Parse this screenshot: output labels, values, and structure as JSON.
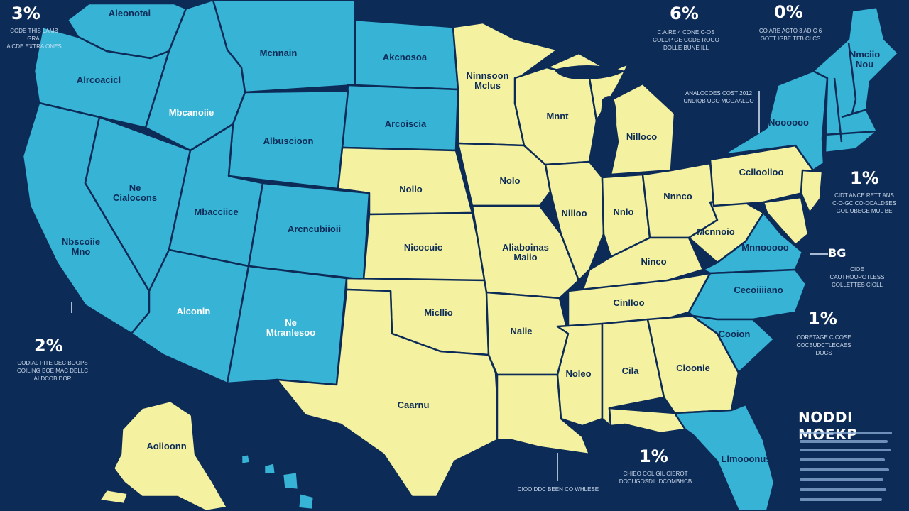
{
  "colors": {
    "background": "#0d2b57",
    "blue_state": "#37b3d6",
    "yellow_state": "#f4f2a0",
    "border": "#0d2b57",
    "text_light": "#ffffff"
  },
  "legend": {
    "title": "NODDI MOEKP"
  },
  "percentages": {
    "top_left": "3%",
    "top_center": "6%",
    "top_right": "0%",
    "right_upper": "1%",
    "right_mid": "1%",
    "bottom_center": "1%",
    "left_mid": "2%"
  },
  "callouts": {
    "top_left": "CODE THIS LAMB GRAI\nA CDE EXTRA ONES",
    "top_center": "C.A.RE 4 CONE C-OS\nCOLOP GE CODE ROGO\nDOLLE BUNE ILL",
    "top_right": "CO ARE ACTO 3 AD C 6\nGOTT IGBE TEB CLCS",
    "mid_right": "ANALOCOES COST 2012\nUNDIQB UCO MCGAALCO",
    "right_upper": "CIDT ANCE RETT ANS\nC-O-GC CO-DOALDSES\nGOLIUBEGE MUL BE",
    "right_mid_label": "BG",
    "right_mid": "CIOE CAUTHOOPOTLESS\nCOLLETTES CIOLL",
    "right_lower": "CORETAGE C COSE\nCOCBUDCTLECAES\nDOCS",
    "left_mid": "CODIAL PITE DEC BOOPS\nCOILING BOE MAC DELLC\nALDCOB DOR",
    "bottom_center": "CHIEO COL GIL CIEROT\nDOCUGOSDIL DCOMBHCB",
    "bottom_left": "CIOO DDC BEEN CO WHLESE"
  },
  "states": {
    "washington": "Aleonotai",
    "oregon": "Alrcoacicl",
    "idaho": "Mbcanoiie",
    "montana": "Mcnnain",
    "north_dakota": "Akcnosoa",
    "south_dakota": "Arcoiscia",
    "wyoming": "Albuscioon",
    "nevada": "Ne\nCialocons",
    "utah": "Mbacciice",
    "colorado": "Arcncubiioii",
    "california": "Nbscoiie\nMno",
    "arizona": "Aiconin",
    "new_mexico": "Ne\nMtranlesoo",
    "nebraska": "Nollo",
    "kansas": "Nicocuic",
    "oklahoma": "Micllio",
    "texas": "Caarnu",
    "minnesota": "Ninnsoon\nMclus",
    "iowa": "Nolo",
    "missouri": "Aliaboinas\nMaiio",
    "arkansas": "Nalie",
    "louisiana": "",
    "wisconsin": "Mnnt",
    "illinois": "Nilloo",
    "michigan": "Nilloco",
    "indiana": "Nnlo",
    "ohio": "Nnnco",
    "kentucky": "Ninco",
    "tennessee": "Cinlloo",
    "mississippi": "Noleo",
    "alabama": "Cila",
    "georgia": "Cioonie",
    "florida": "Llmooonus",
    "south_carolina": "Cooion",
    "north_carolina": "Cecoiiiiano",
    "virginia": "Mnnooooo",
    "west_virginia": "Mcnnoio",
    "pennsylvania": "Cciloolloo",
    "new_york": "Noooooo",
    "maine": "Nmciio\nNou",
    "alaska": "Aolioonn"
  }
}
